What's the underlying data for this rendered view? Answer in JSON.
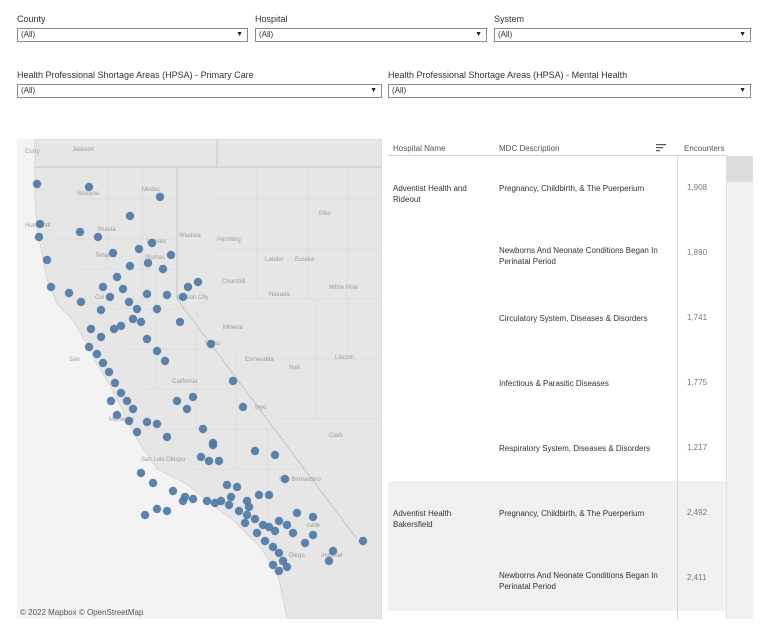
{
  "filters": {
    "county": {
      "label": "County",
      "value": "(All)"
    },
    "hospital": {
      "label": "Hospital",
      "value": "(All)"
    },
    "system": {
      "label": "System",
      "value": "(All)"
    },
    "hpsa_primary": {
      "label": "Health Professional Shortage Areas (HPSA) - Primary Care",
      "value": "(All)"
    },
    "hpsa_mental": {
      "label": "Health Professional Shortage Areas (HPSA) - Mental Health",
      "value": "(All)"
    }
  },
  "map": {
    "attribution": "© 2022 Mapbox  © OpenStreetMap",
    "marker_color": "#4e79a7",
    "labels": {
      "curry": "Curry",
      "jackson": "Jackson",
      "siskiyou": "Siskiyou",
      "modoc": "Modoc",
      "humboldt_ca": "Humboldt",
      "shasta": "Shasta",
      "lassen": "Lassen",
      "washoe": "Washoe",
      "pershing": "Pershing",
      "elko": "Elko",
      "tehama": "Tehama",
      "plumas": "Plumas",
      "lander": "Lander",
      "eureka": "Eureka",
      "churchill": "Churchill",
      "white_pine": "White Pine",
      "colusa": "Col",
      "carson": "Carson City",
      "nevada": "Nevada",
      "mineral": "Mineral",
      "nye": "Nye",
      "esmeralda": "Esmeralda",
      "lincoln": "Lincoln",
      "mono": "Mono",
      "california": "California",
      "inyo": "Inyo",
      "clark": "Clark",
      "monterey": "Monterey",
      "san_luis_obispo": "San Luis Obispo",
      "san_bernardino": "San Bernardino",
      "riverside": "rside",
      "san_diego": "Diego",
      "imperial": "Imperial",
      "sf": "San"
    }
  },
  "table": {
    "columns": {
      "hospital": "Hospital Name",
      "mdc": "MDC Description",
      "encounters": "Encounters"
    },
    "groups": [
      {
        "hospital": "Adventist Health and Rideout",
        "rows": [
          {
            "mdc": "Pregnancy, Childbirth, & The Puerperium",
            "encounters": "1,908"
          },
          {
            "mdc": "Newborns And Neonate Conditions Began In Perinatal Period",
            "encounters": "1,890"
          },
          {
            "mdc": "Circulatory System, Diseases & Disorders",
            "encounters": "1,741"
          },
          {
            "mdc": "Infectious & Parasitic Diseases",
            "encounters": "1,775"
          },
          {
            "mdc": "Respiratory System, Diseases & Disorders",
            "encounters": "1,217"
          }
        ]
      },
      {
        "hospital": "Adventist Health Bakersfield",
        "rows": [
          {
            "mdc": "Pregnancy, Childbirth, & The Puerperium",
            "encounters": "2,492"
          },
          {
            "mdc": "Newborns And Neonate Conditions Began In Perinatal Period",
            "encounters": "2,411"
          }
        ]
      }
    ]
  }
}
